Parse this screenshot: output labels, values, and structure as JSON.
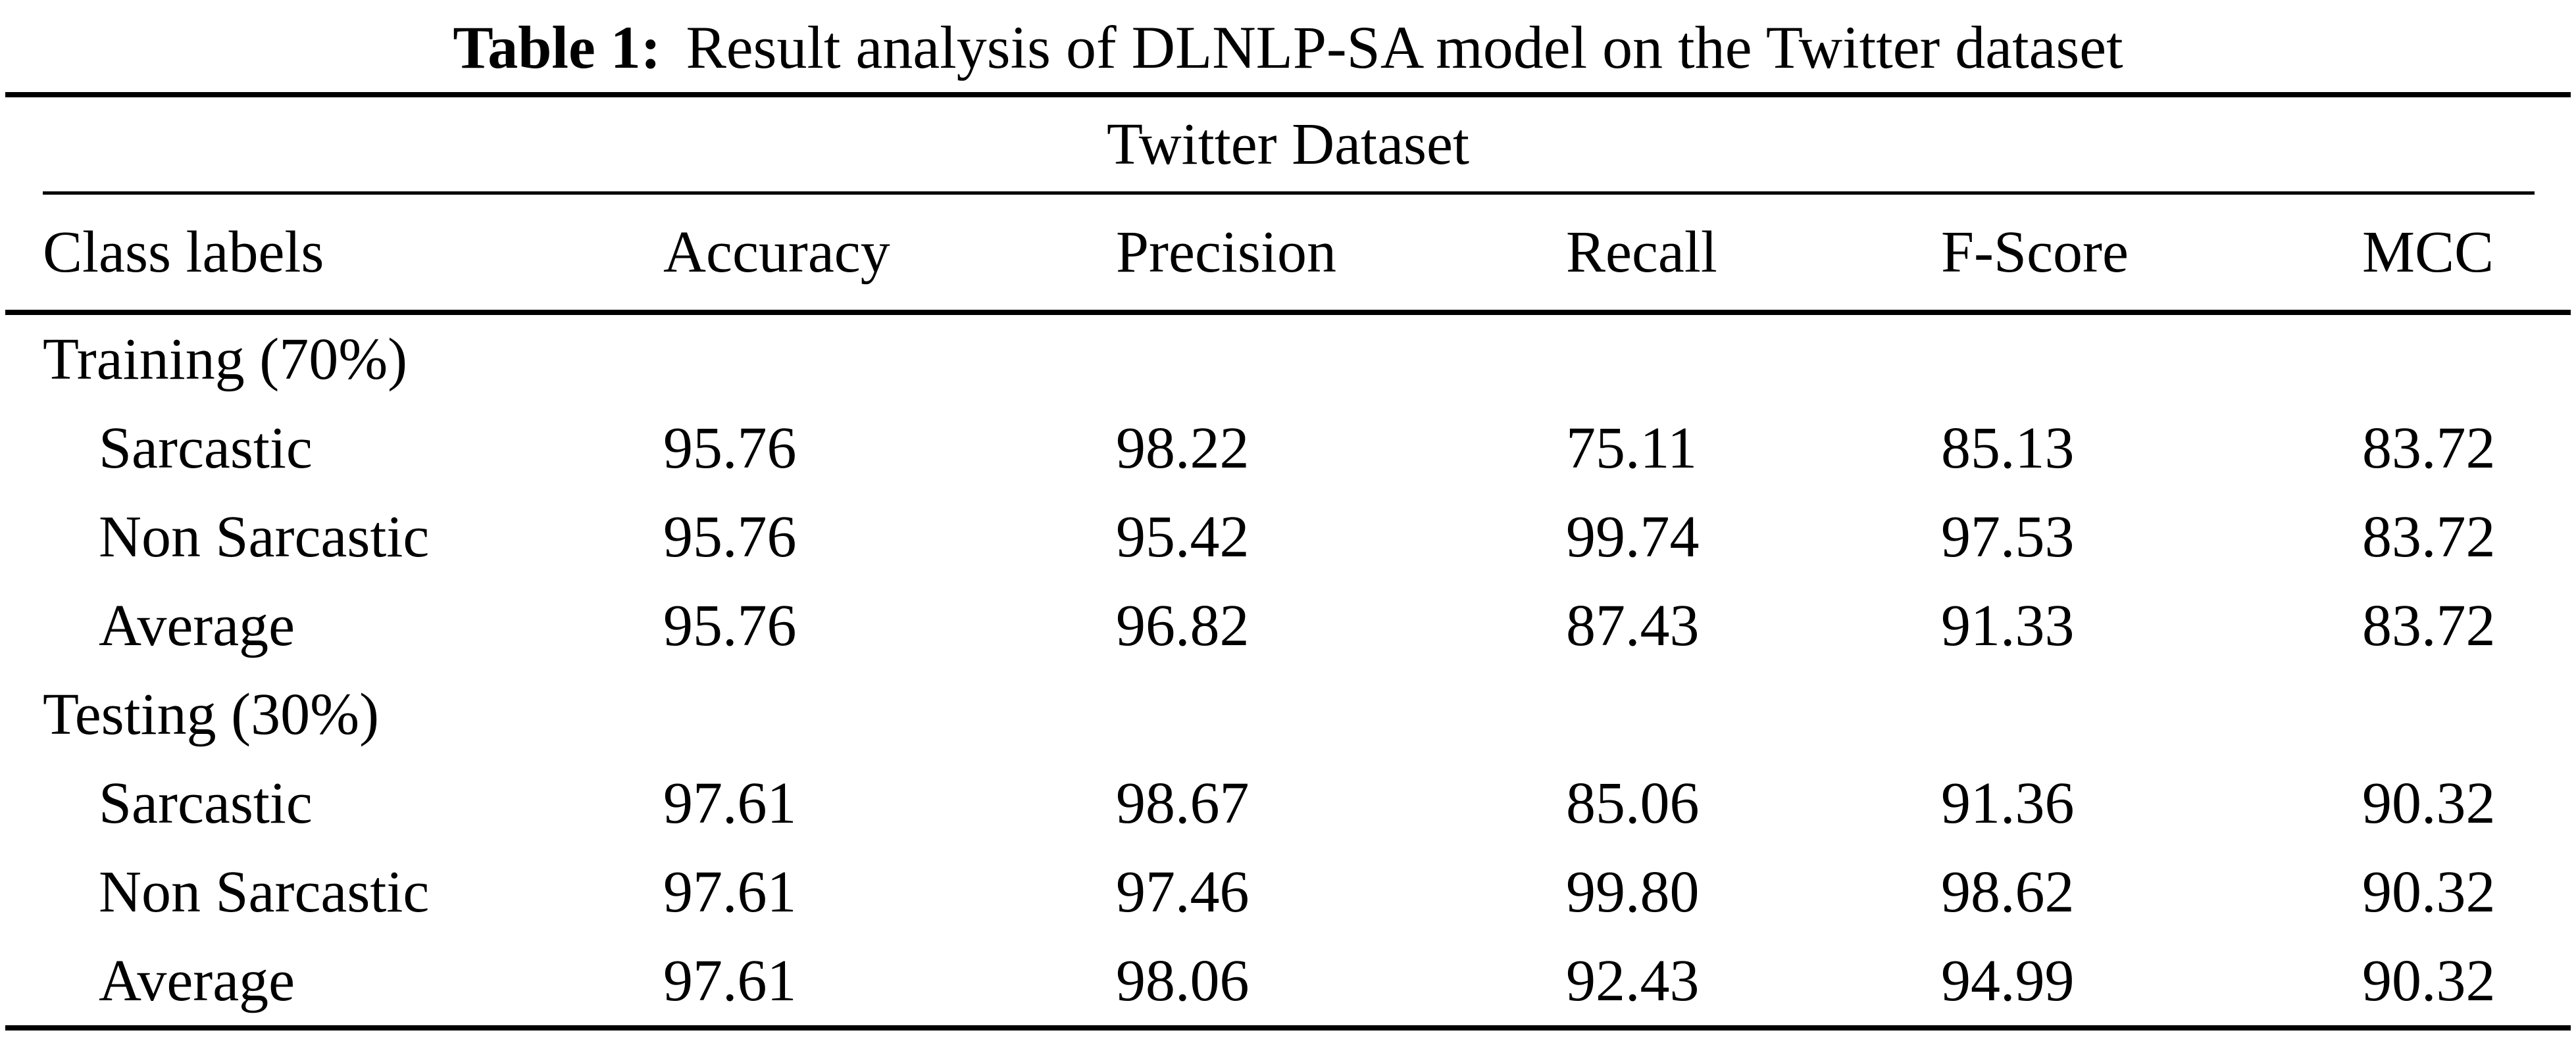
{
  "caption": {
    "label": "Table 1:",
    "text": "Result analysis of DLNLP-SA model on the Twitter dataset"
  },
  "table": {
    "span_header": "Twitter Dataset",
    "columns": [
      "Class labels",
      "Accuracy",
      "Precision",
      "Recall",
      "F-Score",
      "MCC"
    ],
    "sections": [
      {
        "label": "Training (70%)",
        "rows": [
          {
            "label": "Sarcastic",
            "values": [
              "95.76",
              "98.22",
              "75.11",
              "85.13",
              "83.72"
            ]
          },
          {
            "label": "Non Sarcastic",
            "values": [
              "95.76",
              "95.42",
              "99.74",
              "97.53",
              "83.72"
            ]
          },
          {
            "label": "Average",
            "values": [
              "95.76",
              "96.82",
              "87.43",
              "91.33",
              "83.72"
            ]
          }
        ]
      },
      {
        "label": "Testing (30%)",
        "rows": [
          {
            "label": "Sarcastic",
            "values": [
              "97.61",
              "98.67",
              "85.06",
              "91.36",
              "90.32"
            ]
          },
          {
            "label": "Non Sarcastic",
            "values": [
              "97.61",
              "97.46",
              "99.80",
              "98.62",
              "90.32"
            ]
          },
          {
            "label": "Average",
            "values": [
              "97.61",
              "98.06",
              "92.43",
              "94.99",
              "90.32"
            ]
          }
        ]
      }
    ]
  },
  "colors": {
    "text": "#000000",
    "background": "#ffffff",
    "rule": "#000000"
  }
}
